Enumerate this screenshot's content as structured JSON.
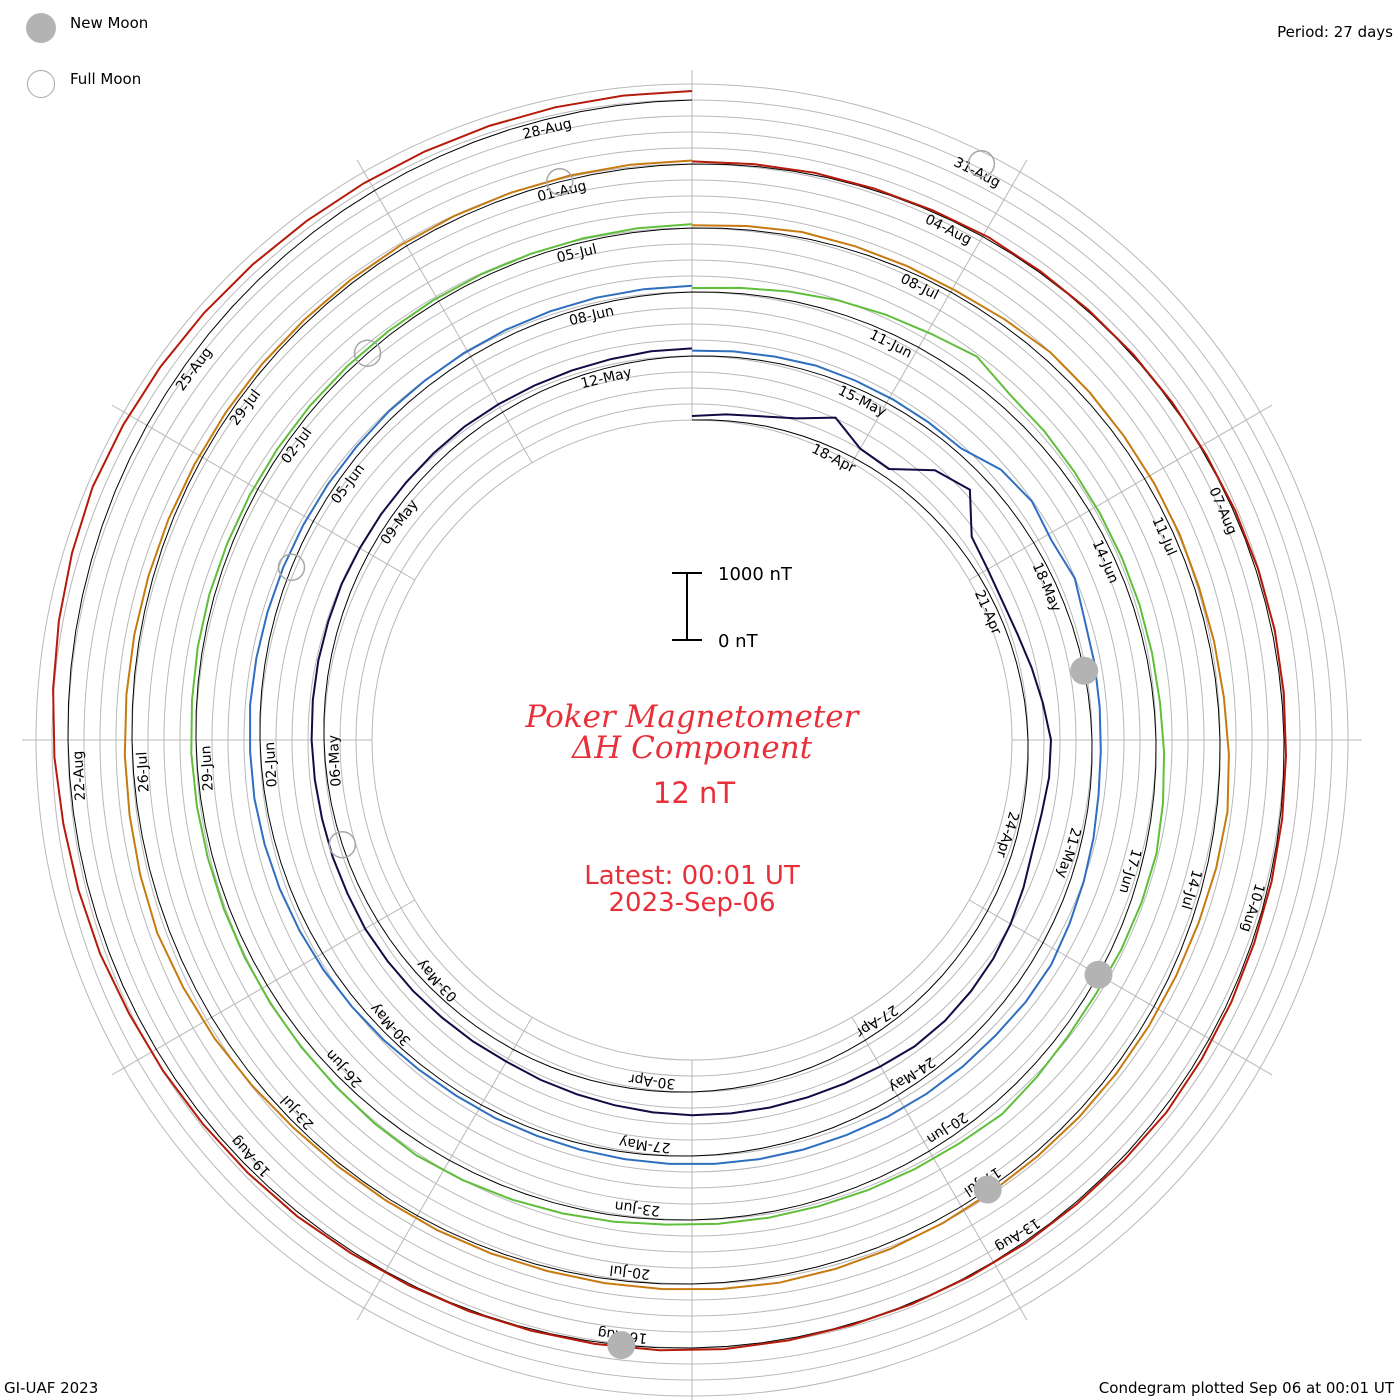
{
  "header": {
    "period_label": "Period: 27 days",
    "legend": {
      "new_moon": "New Moon",
      "full_moon": "Full Moon"
    }
  },
  "footer": {
    "credit": "GI-UAF 2023",
    "plotted": "Condegram plotted Sep 06 at 00:01 UT"
  },
  "title": {
    "line1": "Poker Magnetometer",
    "line2": "ΔH Component",
    "value": "12 nT",
    "latest": "Latest: 00:01 UT",
    "date": "2023-Sep-06"
  },
  "scale_bar": {
    "top_label": "1000 nT",
    "bottom_label": "0 nT"
  },
  "colors": {
    "title": "#e8303a",
    "grid": "#b8b8b8",
    "moon_new": "#b3b3b3",
    "moon_full": "#a6a6a6",
    "cycle_colors": [
      "#140a45",
      "#2a2aa8",
      "#2f6fc0",
      "#2bb09a",
      "#5fbf3a",
      "#a6b01a",
      "#c77a10",
      "#b51a0a"
    ]
  },
  "chart_data": {
    "type": "line",
    "title": "Poker Magnetometer ΔH Component",
    "units": "nT",
    "period_days": 27,
    "latest_value": 12,
    "scale_nT": [
      0,
      1000
    ],
    "cycles": [
      {
        "start": "2023-04-16",
        "labels": [
          "18-Apr",
          "21-Apr",
          "24-Apr",
          "27-Apr",
          "30-Apr",
          "03-May",
          "06-May",
          "09-May",
          "12-May",
          "15-May"
        ],
        "values": [
          60,
          90,
          120,
          200,
          380,
          150,
          120,
          520,
          700,
          260,
          180,
          140,
          160,
          220,
          280,
          340,
          310,
          260,
          250,
          300,
          360,
          420,
          470,
          520,
          540,
          510,
          480,
          450,
          420,
          380,
          340,
          300,
          260,
          230,
          210,
          190,
          200,
          210,
          230,
          240,
          250,
          230,
          220,
          200,
          190,
          180,
          170,
          160,
          150,
          150,
          140,
          140,
          140,
          150,
          160,
          150,
          140,
          130,
          120,
          120,
          110
        ]
      },
      {
        "start": "2023-05-13",
        "labels": [
          "18-May",
          "21-May",
          "24-May",
          "27-May",
          "30-May",
          "02-Jun",
          "05-Jun",
          "08-Jun",
          "11-Jun"
        ],
        "values": [
          80,
          90,
          100,
          120,
          110,
          100,
          90,
          80,
          260,
          300,
          220,
          260,
          180,
          160,
          140,
          130,
          140,
          180,
          220,
          260,
          300,
          280,
          240,
          220,
          200,
          180,
          160,
          150,
          140,
          130,
          120,
          110,
          100,
          90,
          90,
          80,
          80,
          90,
          100,
          110,
          120,
          130,
          140,
          150,
          150,
          160,
          150,
          140,
          130,
          120,
          110,
          100,
          100,
          90,
          90,
          90,
          90,
          90,
          90,
          90
        ]
      },
      {
        "start": "2023-06-09",
        "labels": [
          "14-Jun",
          "17-Jun",
          "20-Jun",
          "23-Jun",
          "26-Jun",
          "29-Jun",
          "02-Jul",
          "05-Jul",
          "08-Jul",
          "11-Jul"
        ],
        "values": [
          60,
          80,
          120,
          160,
          200,
          240,
          320,
          200,
          180,
          150,
          130,
          120,
          110,
          100,
          100,
          120,
          140,
          160,
          140,
          120,
          100,
          110,
          150,
          200,
          160,
          140,
          120,
          100,
          90,
          80,
          70,
          90,
          110,
          130,
          150,
          170,
          150,
          130,
          120,
          110,
          100,
          90,
          80,
          80,
          80,
          70,
          70,
          70,
          60,
          60,
          60,
          60,
          60,
          60,
          60,
          60,
          60,
          60,
          60,
          60
        ]
      },
      {
        "start": "2023-07-06",
        "labels": [
          "14-Jul",
          "17-Jul",
          "20-Jul",
          "23-Jul",
          "26-Jul",
          "29-Jul",
          "01-Aug",
          "04-Aug",
          "07-Aug"
        ],
        "values": [
          40,
          60,
          90,
          80,
          70,
          60,
          90,
          130,
          110,
          90,
          80,
          70,
          60,
          70,
          90,
          130,
          170,
          150,
          120,
          100,
          90,
          80,
          70,
          60,
          60,
          70,
          80,
          90,
          100,
          90,
          80,
          70,
          60,
          60,
          60,
          50,
          50,
          60,
          90,
          120,
          140,
          160,
          140,
          120,
          110,
          100,
          90,
          80,
          70,
          60,
          60,
          60,
          50,
          50,
          50,
          50,
          50,
          50,
          50,
          50
        ]
      },
      {
        "start": "2023-08-02",
        "labels": [
          "10-Aug",
          "13-Aug",
          "16-Aug",
          "19-Aug",
          "22-Aug",
          "25-Aug",
          "28-Aug",
          "31-Aug"
        ],
        "values": [
          40,
          30,
          30,
          20,
          20,
          30,
          20,
          20,
          20,
          20,
          20,
          30,
          40,
          50,
          40,
          30,
          30,
          30,
          30,
          40,
          50,
          60,
          40,
          30,
          30,
          20,
          20,
          20,
          30,
          40,
          40,
          30,
          20,
          20,
          20,
          30,
          50,
          60,
          70,
          90,
          110,
          150,
          170,
          190,
          220,
          240,
          260,
          280,
          300,
          280,
          260,
          240,
          220,
          200,
          190,
          180,
          170,
          160,
          150,
          140
        ]
      }
    ],
    "new_moons": [
      "2023-05-19",
      "2023-06-18",
      "2023-07-17",
      "2023-08-16"
    ],
    "full_moons": [
      "2023-05-05",
      "2023-06-04",
      "2023-07-03",
      "2023-08-01",
      "2023-08-31"
    ]
  }
}
